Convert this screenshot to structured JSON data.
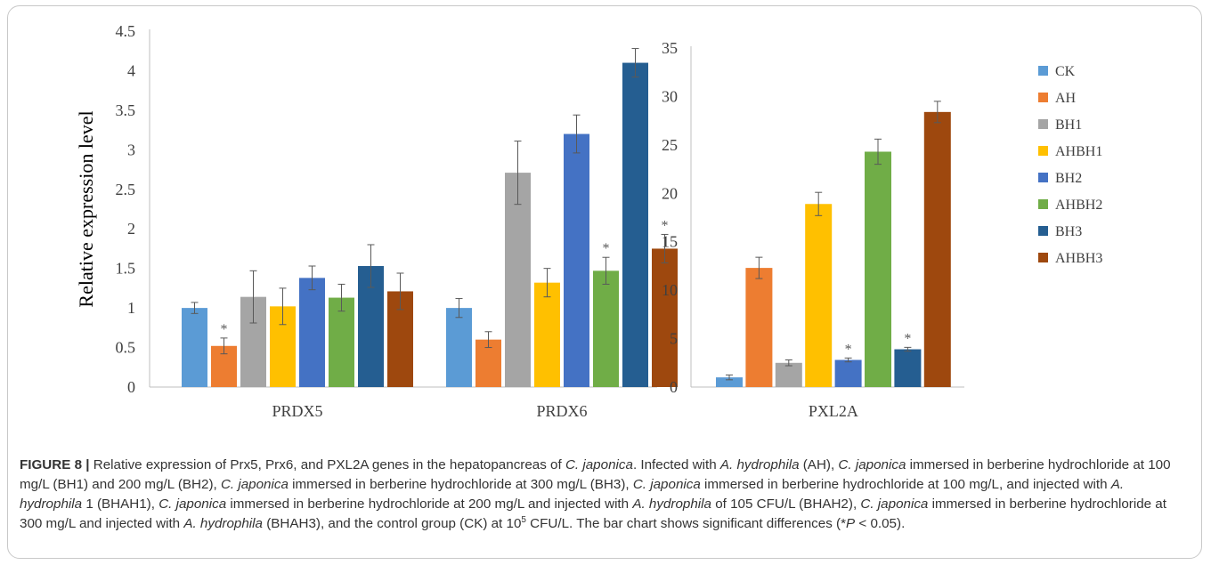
{
  "chart_data": [
    {
      "type": "bar",
      "categories": [
        "PRDX5",
        "PRDX6"
      ],
      "ylabel": "Relative expression level",
      "ylim": [
        0,
        4.5
      ],
      "yticks": [
        "0",
        "0.5",
        "1",
        "1.5",
        "2",
        "2.5",
        "3",
        "3.5",
        "4",
        "4.5"
      ],
      "grid": false,
      "series": [
        {
          "name": "CK",
          "values": [
            1.0,
            1.0
          ],
          "errors": [
            0.07,
            0.12
          ],
          "marks": [
            "",
            ""
          ]
        },
        {
          "name": "AH",
          "values": [
            0.52,
            0.6
          ],
          "errors": [
            0.1,
            0.1
          ],
          "marks": [
            "*",
            ""
          ]
        },
        {
          "name": "BH1",
          "values": [
            1.14,
            2.71
          ],
          "errors": [
            0.33,
            0.4
          ],
          "marks": [
            "",
            ""
          ]
        },
        {
          "name": "AHBH1",
          "values": [
            1.02,
            1.32
          ],
          "errors": [
            0.23,
            0.18
          ],
          "marks": [
            "",
            ""
          ]
        },
        {
          "name": "BH2",
          "values": [
            1.38,
            3.2
          ],
          "errors": [
            0.15,
            0.24
          ],
          "marks": [
            "",
            ""
          ]
        },
        {
          "name": "AHBH2",
          "values": [
            1.13,
            1.47
          ],
          "errors": [
            0.17,
            0.17
          ],
          "marks": [
            "",
            "*"
          ]
        },
        {
          "name": "BH3",
          "values": [
            1.53,
            4.1
          ],
          "errors": [
            0.27,
            0.18
          ],
          "marks": [
            "",
            ""
          ]
        },
        {
          "name": "AHBH3",
          "values": [
            1.21,
            1.75
          ],
          "errors": [
            0.23,
            0.18
          ],
          "marks": [
            "",
            "*"
          ]
        }
      ]
    },
    {
      "type": "bar",
      "categories": [
        "PXL2A"
      ],
      "ylim": [
        0,
        35
      ],
      "yticks": [
        "0",
        "5",
        "10",
        "15",
        "20",
        "25",
        "30",
        "35"
      ],
      "grid": false,
      "series": [
        {
          "name": "CK",
          "values": [
            1.0
          ],
          "errors": [
            0.25
          ],
          "marks": [
            ""
          ]
        },
        {
          "name": "AH",
          "values": [
            12.3
          ],
          "errors": [
            1.1
          ],
          "marks": [
            ""
          ]
        },
        {
          "name": "BH1",
          "values": [
            2.5
          ],
          "errors": [
            0.3
          ],
          "marks": [
            ""
          ]
        },
        {
          "name": "AHBH1",
          "values": [
            18.9
          ],
          "errors": [
            1.2
          ],
          "marks": [
            ""
          ]
        },
        {
          "name": "BH2",
          "values": [
            2.8
          ],
          "errors": [
            0.2
          ],
          "marks": [
            "*"
          ]
        },
        {
          "name": "AHBH2",
          "values": [
            24.3
          ],
          "errors": [
            1.3
          ],
          "marks": [
            ""
          ]
        },
        {
          "name": "BH3",
          "values": [
            3.9
          ],
          "errors": [
            0.2
          ],
          "marks": [
            "*"
          ]
        },
        {
          "name": "AHBH3",
          "values": [
            28.4
          ],
          "errors": [
            1.1
          ],
          "marks": [
            ""
          ]
        }
      ]
    }
  ],
  "legend": {
    "placement": "right",
    "items": [
      "CK",
      "AH",
      "BH1",
      "AHBH1",
      "BH2",
      "AHBH2",
      "BH3",
      "AHBH3"
    ]
  },
  "colors": {
    "CK": "#5B9BD5",
    "AH": "#ED7D31",
    "BH1": "#A5A5A5",
    "AHBH1": "#FFC000",
    "BH2": "#4472C4",
    "AHBH2": "#70AD47",
    "BH3": "#255E91",
    "AHBH3": "#9E480E",
    "axis": "#bfbfbf",
    "text": "#404040",
    "caption_text": "#333333"
  },
  "caption": {
    "label": "FIGURE 8 |",
    "text": [
      {
        "t": " Relative expression of Prx5, Prx6, and PXL2A genes in the hepatopancreas of "
      },
      {
        "t": "C. japonica",
        "i": true
      },
      {
        "t": ". Infected with "
      },
      {
        "t": "A. hydrophila",
        "i": true
      },
      {
        "t": " (AH), "
      },
      {
        "t": "C. japonica",
        "i": true
      },
      {
        "t": " immersed in berberine hydrochloride at 100 mg/L (BH1) and 200 mg/L (BH2), "
      },
      {
        "t": "C. japonica",
        "i": true
      },
      {
        "t": " immersed in berberine hydrochloride at 300 mg/L (BH3), "
      },
      {
        "t": "C. japonica",
        "i": true
      },
      {
        "t": " immersed in berberine hydrochloride at 100 mg/L, and injected with "
      },
      {
        "t": "A. hydrophila",
        "i": true
      },
      {
        "t": " 1 (BHAH1), "
      },
      {
        "t": "C. japonica",
        "i": true
      },
      {
        "t": " immersed in berberine hydrochloride at 200 mg/L and injected with "
      },
      {
        "t": "A. hydrophila",
        "i": true
      },
      {
        "t": " of 105 CFU/L (BHAH2), "
      },
      {
        "t": "C. japonica",
        "i": true
      },
      {
        "t": " immersed in berberine hydrochloride at 300 mg/L and injected with "
      },
      {
        "t": "A. hydrophila",
        "i": true
      },
      {
        "t": " (BHAH3), and the control group (CK) at 10"
      },
      {
        "t": "5",
        "sup": true
      },
      {
        "t": " CFU/L. The bar chart shows significant differences (*"
      },
      {
        "t": "P",
        "i": true
      },
      {
        "t": " < 0.05)."
      }
    ]
  }
}
